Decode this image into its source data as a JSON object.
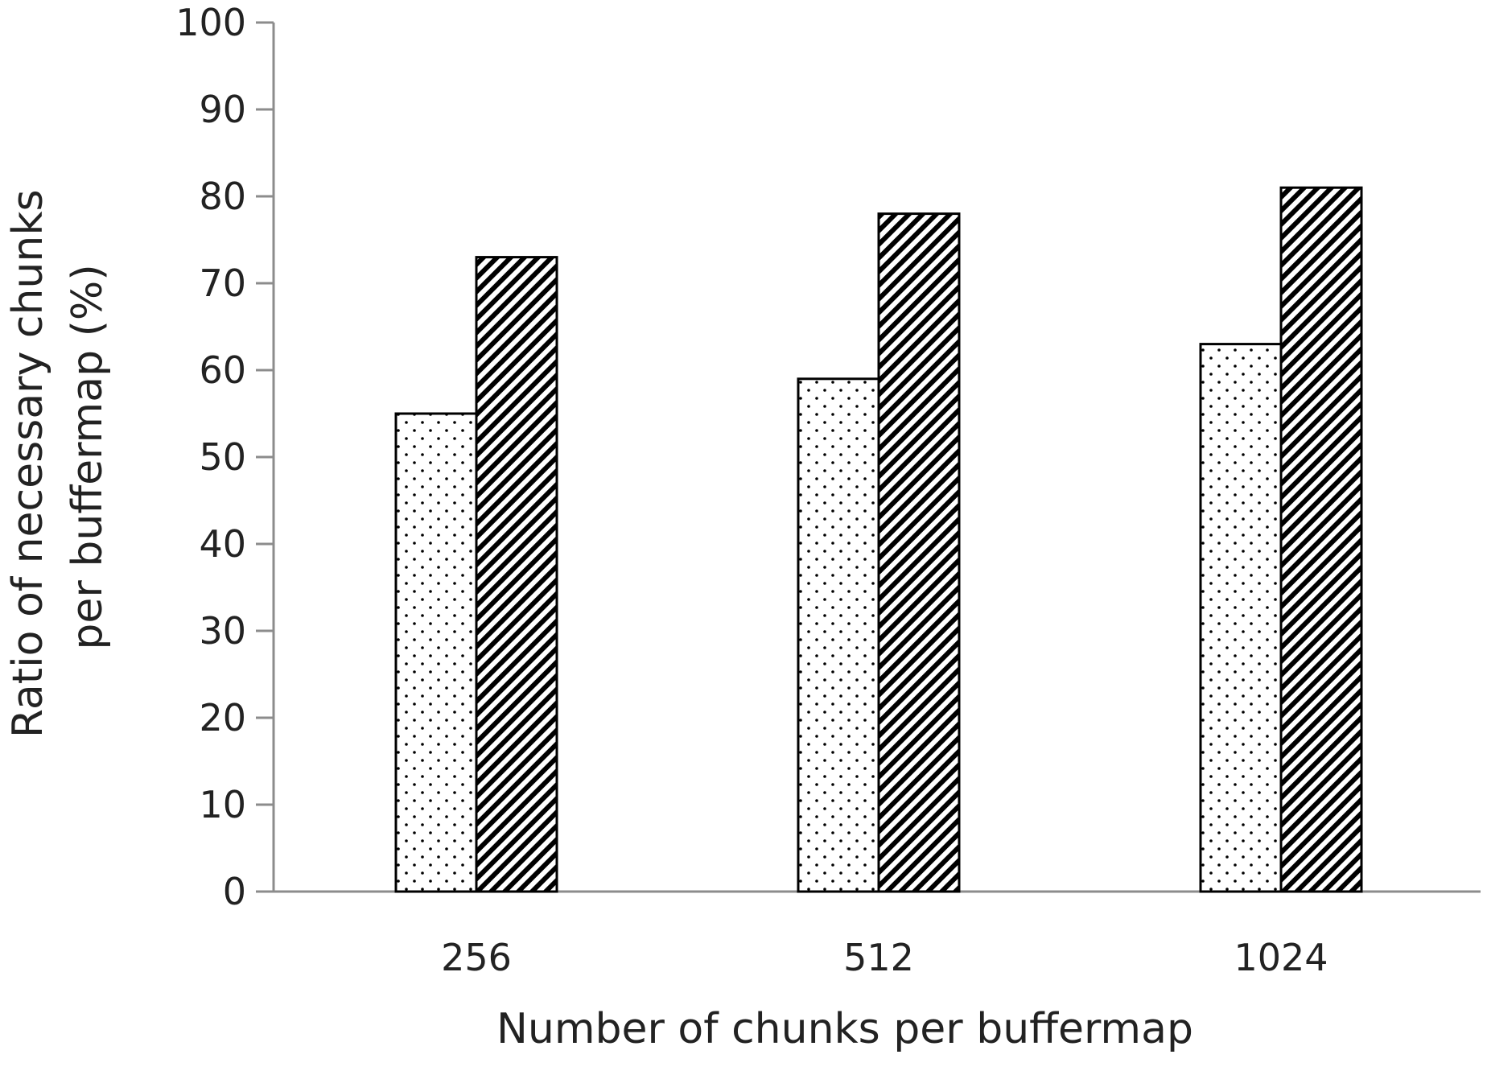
{
  "chart_data": {
    "type": "bar",
    "title": "",
    "xlabel": "Number of chunks per buffermap",
    "ylabel_lines": [
      "Ratio of necessary chunks",
      "per buffermap (%)"
    ],
    "categories": [
      "256",
      "512",
      "1024"
    ],
    "series": [
      {
        "pattern": "dots",
        "values": [
          55,
          59,
          63
        ]
      },
      {
        "pattern": "diagonal-hatch",
        "values": [
          73,
          78,
          81
        ]
      }
    ],
    "ylim": [
      0,
      100
    ],
    "yticks": [
      0,
      10,
      20,
      30,
      40,
      50,
      60,
      70,
      80,
      90,
      100
    ],
    "grid": false,
    "legend": "none"
  },
  "colors": {
    "axis": "#8c8c8c",
    "bar_outline": "#000000",
    "background": "#ffffff"
  }
}
